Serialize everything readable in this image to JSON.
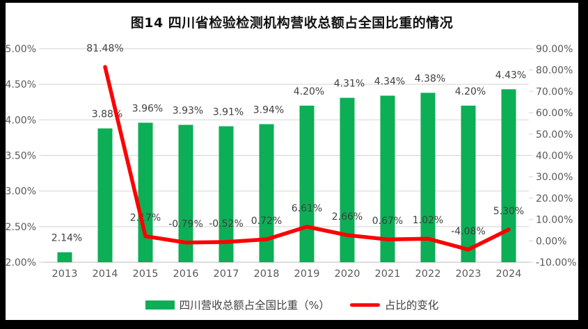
{
  "title": "图14  四川省检验检测机构营收总额占全国比重的情况",
  "colors": {
    "bar_green": "#0CAE56",
    "line_red": "#FF0000",
    "gridline": "#D9D9D9",
    "bottom_axis_line": "#C6C6C6",
    "axis_text": "#595959",
    "data_label_text": "#404040",
    "frame": "#000000",
    "background": "#FFFFFF"
  },
  "chart_data": {
    "type": "combo-bar-line",
    "title": "图14  四川省检验检测机构营收总额占全国比重的情况",
    "categories": [
      "2013",
      "2014",
      "2015",
      "2016",
      "2017",
      "2018",
      "2019",
      "2020",
      "2021",
      "2022",
      "2023",
      "2024"
    ],
    "series": [
      {
        "name": "四川营收总额占全国比重（%）",
        "type": "bar",
        "axis": "left",
        "values": [
          2.14,
          3.88,
          3.96,
          3.93,
          3.91,
          3.94,
          4.2,
          4.31,
          4.34,
          4.38,
          4.2,
          4.43
        ],
        "labels": [
          "2.14%",
          "3.88%",
          "3.96%",
          "3.93%",
          "3.91%",
          "3.94%",
          "4.20%",
          "4.31%",
          "4.34%",
          "4.38%",
          "4.20%",
          "4.43%"
        ]
      },
      {
        "name": "占比的变化",
        "type": "line",
        "axis": "right",
        "values": [
          null,
          81.48,
          2.17,
          -0.79,
          -0.52,
          0.72,
          6.61,
          2.66,
          0.67,
          1.02,
          -4.08,
          5.3
        ],
        "labels": [
          null,
          "81.48%",
          "2.17%",
          "-0.79%",
          "-0.52%",
          "0.72%",
          "6.61%",
          "2.66%",
          "0.67%",
          "1.02%",
          "-4.08%",
          "5.30%"
        ]
      }
    ],
    "left_axis": {
      "min": 2.0,
      "max": 5.0,
      "step": 0.5,
      "tick_labels": [
        "5.00%",
        "4.50%",
        "4.00%",
        "3.50%",
        "3.00%",
        "2.50%",
        "2.00%"
      ]
    },
    "right_axis": {
      "min": -10,
      "max": 90,
      "step": 10,
      "tick_labels": [
        "90.00%",
        "80.00%",
        "70.00%",
        "60.00%",
        "50.00%",
        "40.00%",
        "30.00%",
        "20.00%",
        "10.00%",
        "0.00%",
        "-10.00%"
      ]
    },
    "legend": {
      "position": "bottom",
      "items": [
        {
          "label": "四川营收总额占全国比重（%）",
          "marker": "bar"
        },
        {
          "label": "占比的变化",
          "marker": "line"
        }
      ]
    },
    "grid": "horizontal-on"
  }
}
